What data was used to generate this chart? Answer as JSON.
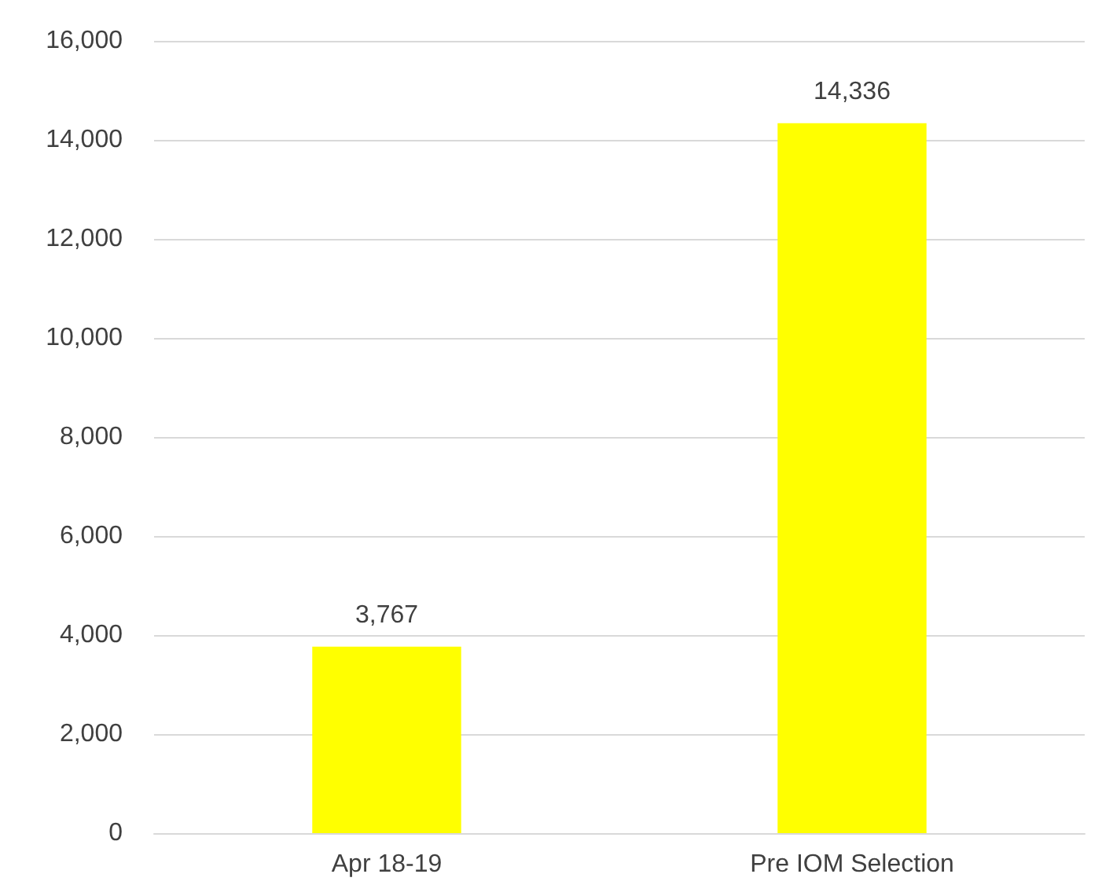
{
  "chart_data": {
    "type": "bar",
    "categories": [
      "Apr 18-19",
      "Pre IOM Selection"
    ],
    "values": [
      3767,
      14336
    ],
    "value_labels": [
      "3,767",
      "14,336"
    ],
    "color": "#ffff00",
    "ylim": [
      0,
      16000
    ],
    "yticks": [
      {
        "value": 0,
        "label": "0"
      },
      {
        "value": 2000,
        "label": "2,000"
      },
      {
        "value": 4000,
        "label": "4,000"
      },
      {
        "value": 6000,
        "label": "6,000"
      },
      {
        "value": 8000,
        "label": "8,000"
      },
      {
        "value": 10000,
        "label": "10,000"
      },
      {
        "value": 12000,
        "label": "12,000"
      },
      {
        "value": 14000,
        "label": "14,000"
      },
      {
        "value": 16000,
        "label": "16,000"
      }
    ],
    "grid": "y"
  }
}
